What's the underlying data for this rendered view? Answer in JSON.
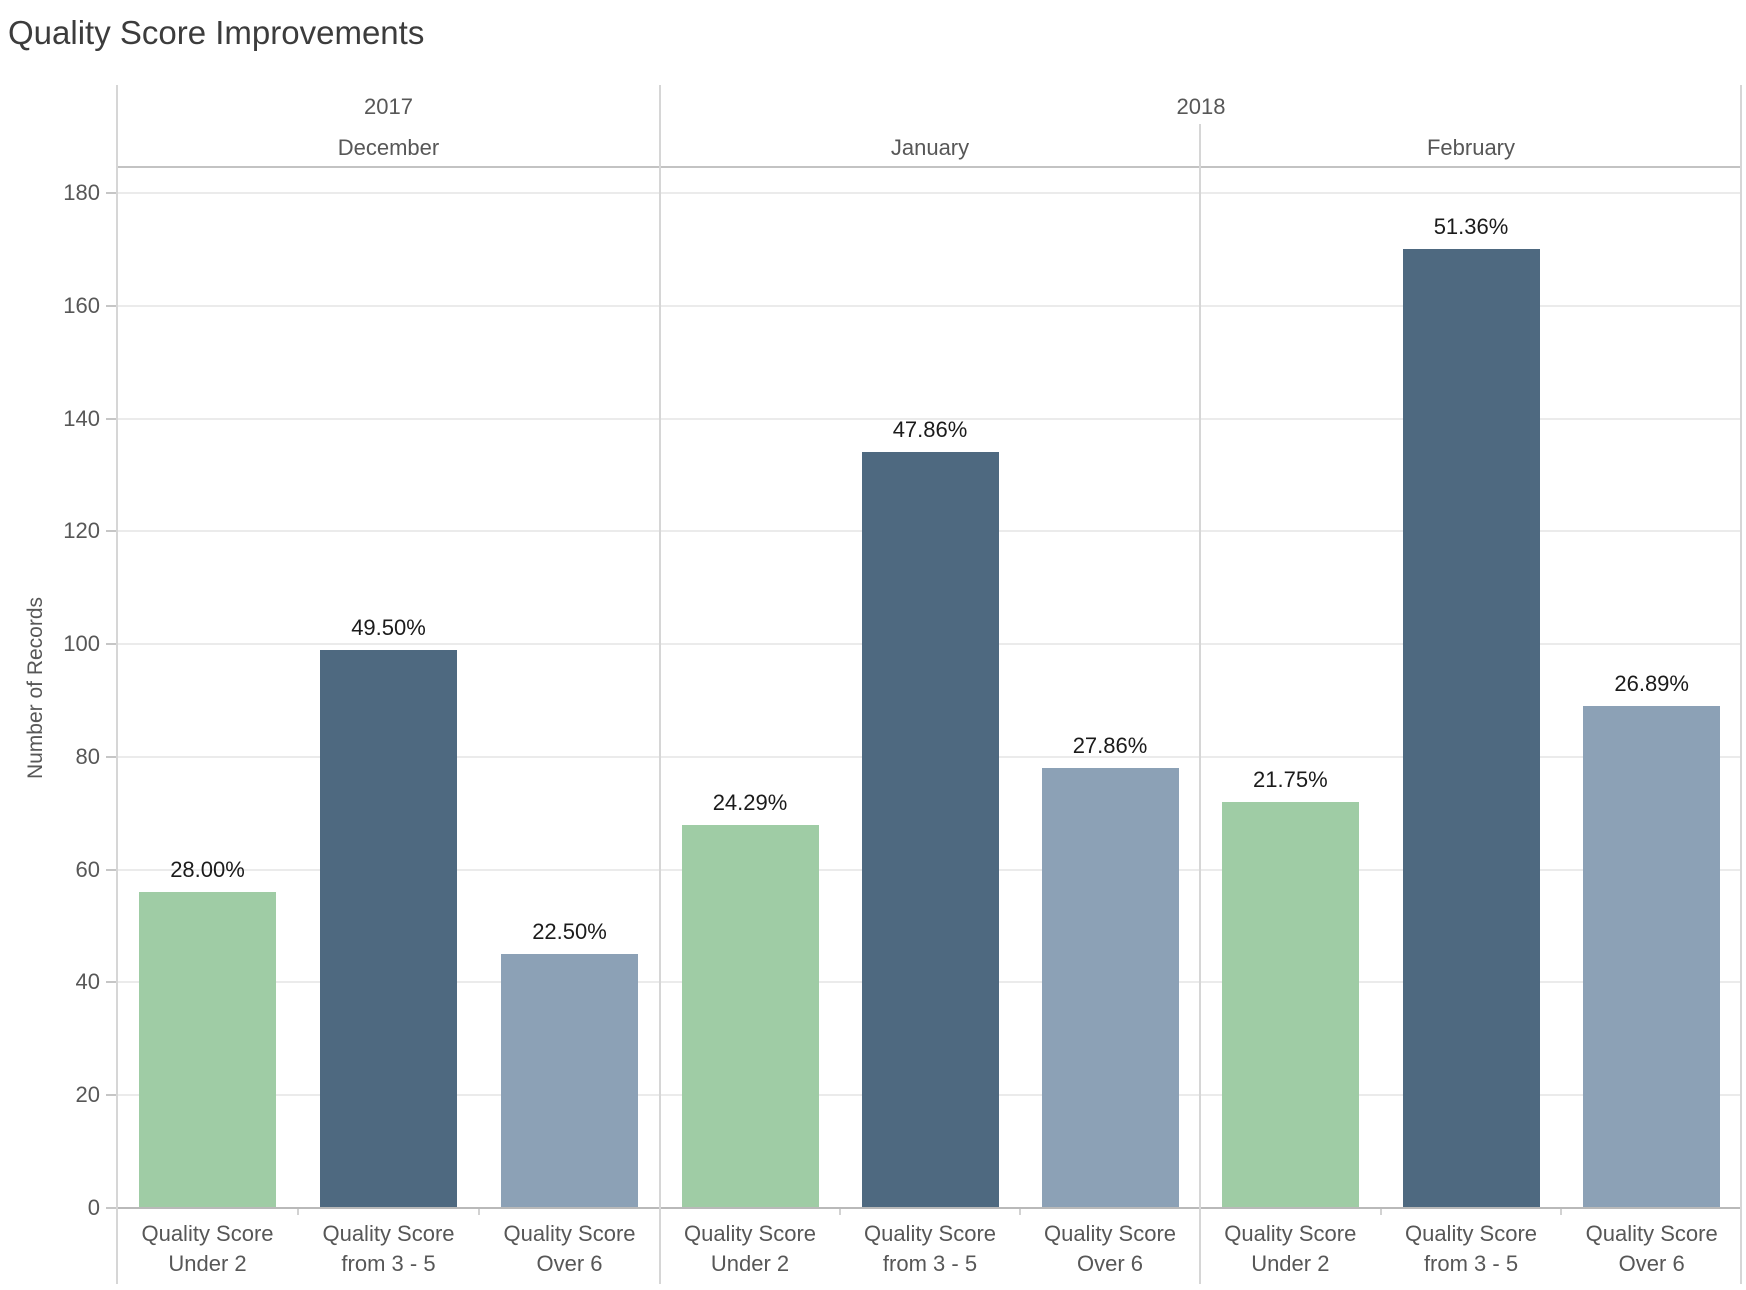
{
  "title": "Quality Score Improvements",
  "y_axis": {
    "label": "Number of Records",
    "ticks": [
      0,
      20,
      40,
      60,
      80,
      100,
      120,
      140,
      160,
      180
    ]
  },
  "chart_data": {
    "type": "bar",
    "title": "Quality Score Improvements",
    "ylabel": "Number of Records",
    "xlabel": "",
    "ylim": [
      0,
      184.6
    ],
    "grid": true,
    "legend": "none",
    "bar_colors": [
      "#9fcca5",
      "#4e6980",
      "#8ca1b6"
    ],
    "categories": [
      "Quality Score Under 2",
      "Quality Score from 3 - 5",
      "Quality Score Over 6"
    ],
    "category_lines": [
      [
        "Quality Score",
        "Under 2"
      ],
      [
        "Quality Score",
        "from 3 - 5"
      ],
      [
        "Quality Score",
        "Over 6"
      ]
    ],
    "year_headers": [
      {
        "label": "2017",
        "months": [
          "December"
        ]
      },
      {
        "label": "2018",
        "months": [
          "January",
          "February"
        ]
      }
    ],
    "groups": [
      {
        "year": "2017",
        "month": "December",
        "values": [
          56,
          99,
          45
        ],
        "value_labels": [
          "28.00%",
          "49.50%",
          "22.50%"
        ]
      },
      {
        "year": "2018",
        "month": "January",
        "values": [
          68,
          134,
          78
        ],
        "value_labels": [
          "24.29%",
          "47.86%",
          "27.86%"
        ]
      },
      {
        "year": "2018",
        "month": "February",
        "values": [
          72,
          170,
          89
        ],
        "value_labels": [
          "21.75%",
          "51.36%",
          "26.89%"
        ]
      }
    ]
  }
}
